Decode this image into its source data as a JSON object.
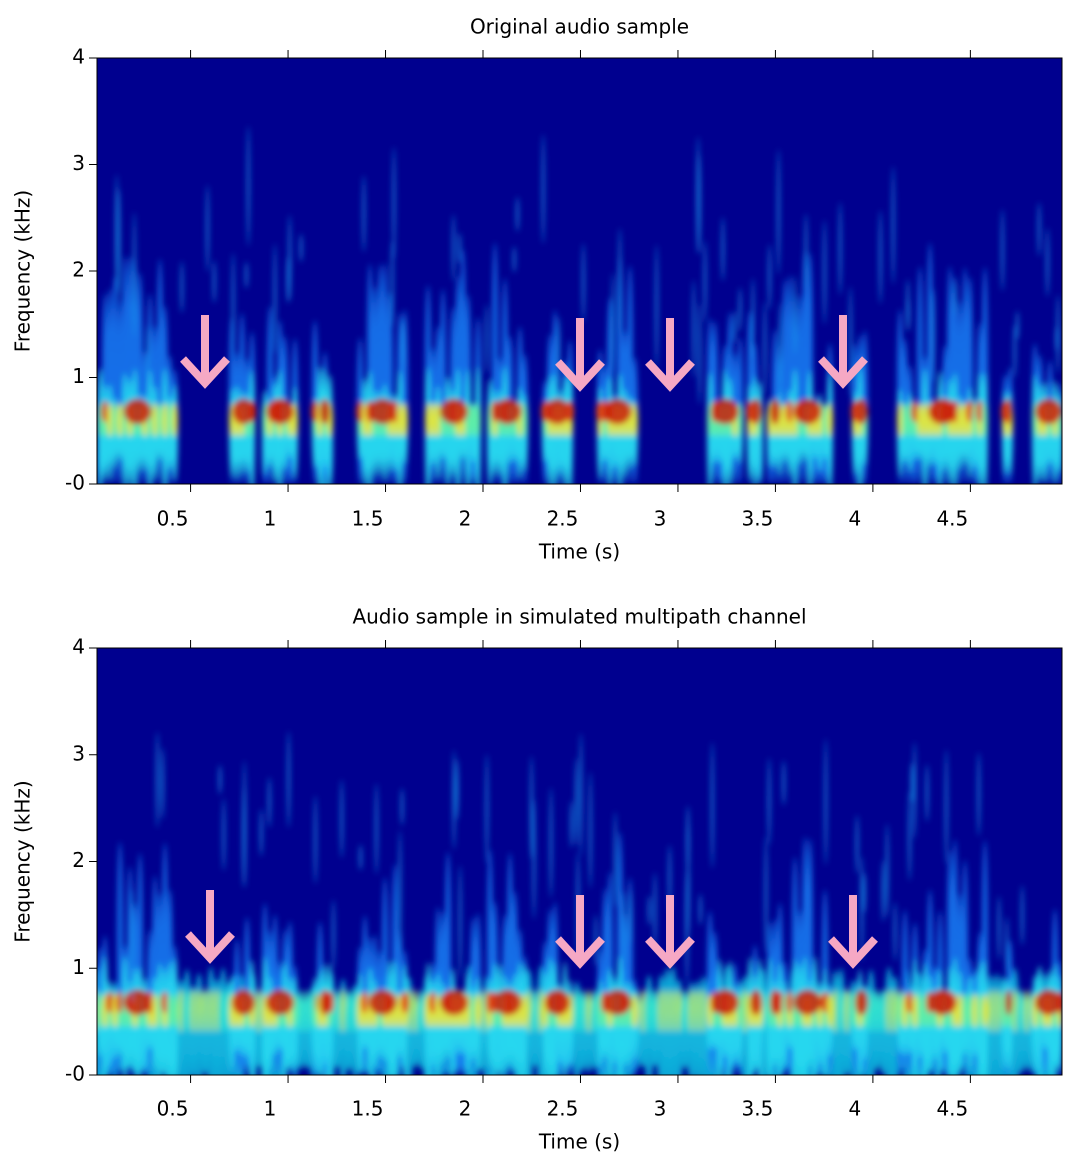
{
  "chart_data": [
    {
      "type": "spectrogram",
      "title": "Original audio sample",
      "xlabel": "Time (s)",
      "ylabel": "Frequency (kHz)",
      "xlim": [
        0.02,
        4.97
      ],
      "ylim": [
        0,
        4
      ],
      "xticks": [
        0.5,
        1,
        1.5,
        2,
        2.5,
        3,
        3.5,
        4,
        4.5
      ],
      "yticks": [
        {
          "value": 0,
          "label": "-0"
        },
        1,
        2,
        3,
        4
      ]
    },
    {
      "type": "spectrogram",
      "title": "Audio sample in simulated multipath channel",
      "xlabel": "Time (s)",
      "ylabel": "Frequency (kHz)",
      "xlim": [
        0.02,
        4.97
      ],
      "ylim": [
        0,
        4
      ],
      "xticks": [
        0.5,
        1,
        1.5,
        2,
        2.5,
        3,
        3.5,
        4,
        4.5
      ],
      "yticks": [
        {
          "value": 0,
          "label": "-0"
        },
        1,
        2,
        3,
        4
      ]
    }
  ]
}
